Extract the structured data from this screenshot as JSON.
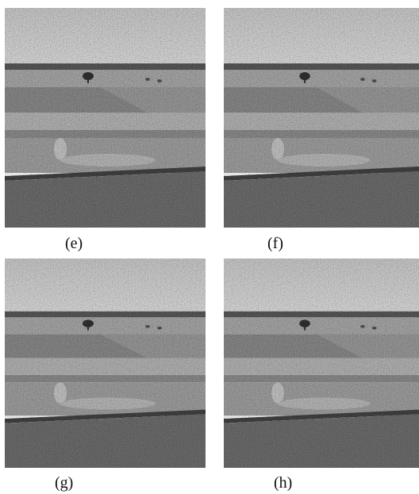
{
  "panels": [
    {
      "caption": "(e)"
    },
    {
      "caption": "(f)"
    },
    {
      "caption": "(g)"
    },
    {
      "caption": "(h)"
    }
  ]
}
